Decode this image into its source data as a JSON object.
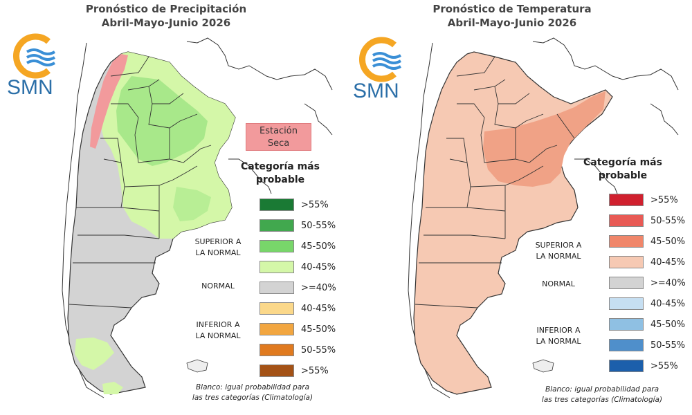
{
  "precipitation_panel": {
    "title_line1": "Pronóstico de Precipitación",
    "title_line2": "Abril-Mayo-Junio 2026",
    "logo_text": "SMN",
    "dry_season_line1": "Estación",
    "dry_season_line2": "Seca",
    "legend_title_line1": "Categoría más",
    "legend_title_line2": "probable",
    "superior_line1": "SUPERIOR A",
    "superior_line2": "LA NORMAL",
    "normal_label": "NORMAL",
    "inferior_line1": "INFERIOR A",
    "inferior_line2": "LA NORMAL",
    "note_line1": "Blanco: igual probabilidad para",
    "note_line2": "las tres categorías (Climatología)",
    "legend": [
      {
        "label": ">55%",
        "color": "#1a7a34"
      },
      {
        "label": "50-55%",
        "color": "#41a84e"
      },
      {
        "label": "45-50%",
        "color": "#78d66a"
      },
      {
        "label": "40-45%",
        "color": "#d4f7a8"
      },
      {
        "label": ">=40%",
        "color": "#d3d3d3"
      },
      {
        "label": "40-45%",
        "color": "#fbd88a"
      },
      {
        "label": "45-50%",
        "color": "#f2a640"
      },
      {
        "label": "50-55%",
        "color": "#e07a1f"
      },
      {
        "label": ">55%",
        "color": "#a45216"
      }
    ],
    "colors": {
      "north_wet": "#d4f7a8",
      "north_wet_strong": "#a8e88a",
      "dry": "#f29a9c",
      "normal": "#d3d3d3"
    }
  },
  "temperature_panel": {
    "title_line1": "Pronóstico de Temperatura",
    "title_line2": "Abril-Mayo-Junio 2026",
    "logo_text": "SMN",
    "legend_title_line1": "Categoría más",
    "legend_title_line2": "probable",
    "superior_line1": "SUPERIOR A",
    "superior_line2": "LA NORMAL",
    "normal_label": "NORMAL",
    "inferior_line1": "INFERIOR A",
    "inferior_line2": "LA NORMAL",
    "note_line1": "Blanco: igual probabilidad para",
    "note_line2": "las tres categorías (Climatología)",
    "legend": [
      {
        "label": ">55%",
        "color": "#d0202e"
      },
      {
        "label": "50-55%",
        "color": "#e85a55"
      },
      {
        "label": "45-50%",
        "color": "#f0866a"
      },
      {
        "label": "40-45%",
        "color": "#f6c9b3"
      },
      {
        "label": ">=40%",
        "color": "#d3d3d3"
      },
      {
        "label": "40-45%",
        "color": "#c6dff2"
      },
      {
        "label": "45-50%",
        "color": "#8fc0e3"
      },
      {
        "label": "50-55%",
        "color": "#4f8fcb"
      },
      {
        "label": ">55%",
        "color": "#1c5fab"
      }
    ],
    "colors": {
      "warm": "#f6c9b3",
      "warm_strong": "#f0a286"
    }
  }
}
